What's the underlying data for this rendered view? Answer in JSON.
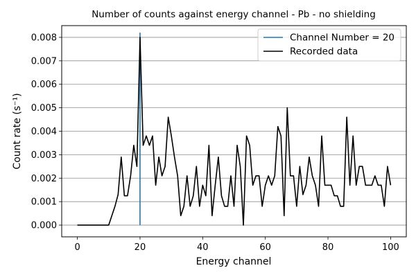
{
  "chart_data": {
    "type": "line",
    "title": "Number of counts against energy channel - Pb - no shielding",
    "xlabel": "Energy channel",
    "ylabel": "Count rate (s⁻¹)",
    "xlim": [
      -5,
      105
    ],
    "ylim": [
      -0.0005,
      0.0085
    ],
    "x_ticks": [
      0,
      20,
      40,
      60,
      80,
      100
    ],
    "y_ticks": [
      0.0,
      0.001,
      0.002,
      0.003,
      0.004,
      0.005,
      0.006,
      0.007,
      0.008
    ],
    "x_tick_labels": [
      "0",
      "20",
      "40",
      "60",
      "80",
      "100"
    ],
    "y_tick_labels": [
      "0.000",
      "0.001",
      "0.002",
      "0.003",
      "0.004",
      "0.005",
      "0.006",
      "0.007",
      "0.008"
    ],
    "grid": "horizontal",
    "legend_position": "top-right",
    "vline": {
      "name": "Channel Number = 20",
      "x": 20,
      "y_range": [
        0.0,
        0.0082
      ],
      "color": "#1f77b4"
    },
    "series": [
      {
        "name": "Recorded data",
        "color": "#000000",
        "x": [
          0,
          1,
          2,
          3,
          4,
          5,
          6,
          7,
          8,
          9,
          10,
          11,
          12,
          13,
          14,
          15,
          16,
          17,
          18,
          19,
          20,
          21,
          22,
          23,
          24,
          25,
          26,
          27,
          28,
          29,
          30,
          31,
          32,
          33,
          34,
          35,
          36,
          37,
          38,
          39,
          40,
          41,
          42,
          43,
          44,
          45,
          46,
          47,
          48,
          49,
          50,
          51,
          52,
          53,
          54,
          55,
          56,
          57,
          58,
          59,
          60,
          61,
          62,
          63,
          64,
          65,
          66,
          67,
          68,
          69,
          70,
          71,
          72,
          73,
          74,
          75,
          76,
          77,
          78,
          79,
          80,
          81,
          82,
          83,
          84,
          85,
          86,
          87,
          88,
          89,
          90,
          91,
          92,
          93,
          94,
          95,
          96,
          97,
          98,
          99,
          100
        ],
        "y": [
          0,
          0,
          0,
          0,
          0,
          0,
          0,
          0,
          0,
          0,
          0,
          0.0004,
          0.0008,
          0.0013,
          0.0029,
          0.00125,
          0.00125,
          0.0021,
          0.0034,
          0.0025,
          0.008,
          0.0034,
          0.0038,
          0.0034,
          0.0038,
          0.0017,
          0.0029,
          0.0021,
          0.0025,
          0.0046,
          0.0038,
          0.0029,
          0.0021,
          0.0004,
          0.0008,
          0.0021,
          0.0008,
          0.00125,
          0.0025,
          0.0008,
          0.0017,
          0.00125,
          0.0034,
          0.0004,
          0.0017,
          0.0029,
          0.00125,
          0.0008,
          0.0008,
          0.0021,
          0.0008,
          0.0034,
          0.0025,
          0,
          0.0038,
          0.0034,
          0.0017,
          0.0021,
          0.0021,
          0.0008,
          0.0017,
          0.0021,
          0.0017,
          0.0021,
          0.0042,
          0.0038,
          0.0004,
          0.005,
          0.0021,
          0.0021,
          0.0008,
          0.0025,
          0.0013,
          0.0017,
          0.0029,
          0.0021,
          0.0017,
          0.0008,
          0.0038,
          0.0017,
          0.0017,
          0.0017,
          0.00125,
          0.00125,
          0.0008,
          0.0008,
          0.0046,
          0.0017,
          0.0038,
          0.0017,
          0.0025,
          0.0025,
          0.0017,
          0.0017,
          0.0017,
          0.0021,
          0.0017,
          0.0017,
          0.0008,
          0.0025,
          0.0017
        ]
      }
    ]
  }
}
